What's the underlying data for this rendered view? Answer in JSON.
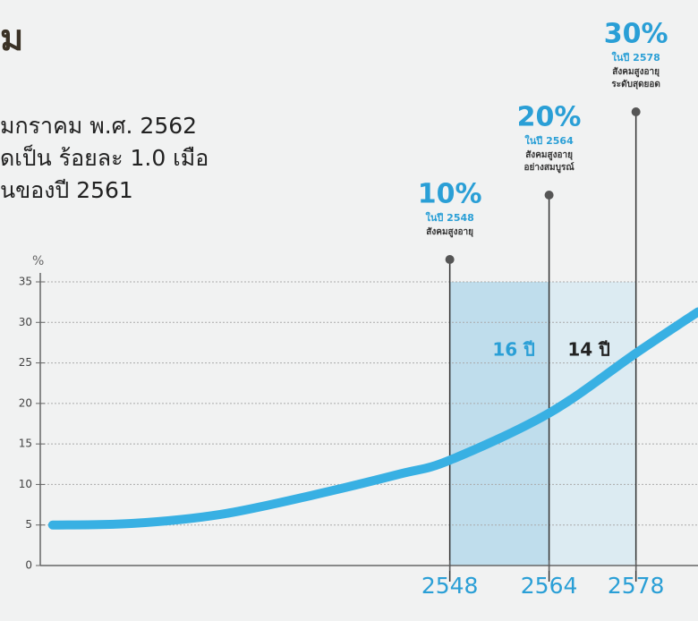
{
  "heading": "ม",
  "body_lines": [
    "มกราคม พ.ศ. 2562",
    "ดเป็น ร้อยละ 1.0 เมือ",
    "ันของปี 2561"
  ],
  "chart_data": {
    "type": "line",
    "y_label": "%",
    "x": [
      2484,
      2497,
      2511,
      2526,
      2540,
      2548,
      2564,
      2578,
      2588
    ],
    "series": [
      {
        "name": "สังคมสูงอายุ",
        "color": "#38b0e3",
        "values": [
          5,
          5.2,
          6.3,
          8.7,
          11.3,
          13,
          18.8,
          26.2,
          31.3
        ]
      }
    ],
    "xlim": [
      2482,
      2588
    ],
    "xticks": [
      2548,
      2564,
      2578
    ],
    "ylim": [
      0,
      35
    ],
    "yticks": [
      0,
      5,
      10,
      15,
      20,
      25,
      30,
      35
    ],
    "grid": true,
    "annotations": [
      {
        "x": 2548,
        "label": "10%",
        "year_text": "ในปี 2548",
        "lines": [
          "สังคมสูงอายุ"
        ]
      },
      {
        "x": 2564,
        "label": "20%",
        "year_text": "ในปี 2564",
        "lines": [
          "สังคมสูงอายุ",
          "อย่างสมบูรณ์"
        ]
      },
      {
        "x": 2578,
        "label": "30%",
        "year_text": "ในปี 2578",
        "lines": [
          "สังคมสูงอายุ",
          "ระดับสุดยอด"
        ]
      }
    ],
    "spans": [
      {
        "from": 2548,
        "to": 2564,
        "label": "16 ปี",
        "color": "#a9d4ea"
      },
      {
        "from": 2564,
        "to": 2578,
        "label": "14 ปี",
        "color": "#d3e8f2"
      }
    ]
  }
}
